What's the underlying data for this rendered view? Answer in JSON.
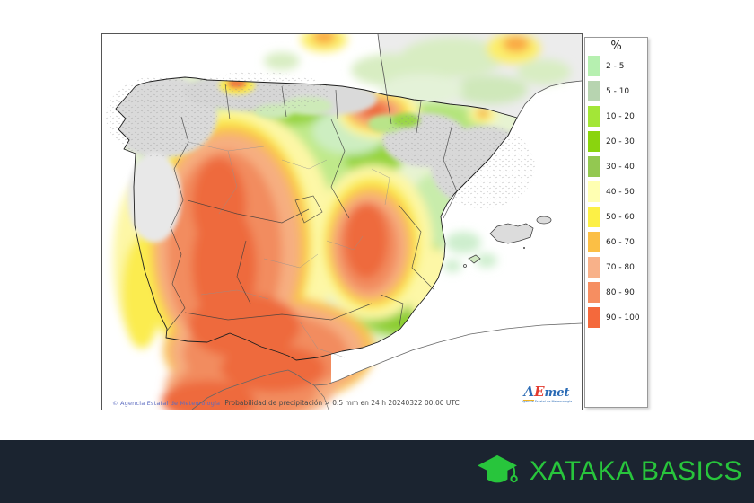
{
  "map": {
    "attribution": "© Agencia Estatal de Meteorología",
    "caption": "Probabilidad de precipitación > 0.5 mm en 24 h 20240322 00:00 UTC",
    "aemet_logo": {
      "part_a": "A",
      "part_e": "E",
      "part_met": "met",
      "subtitle": "Agencia Estatal de Meteorología"
    }
  },
  "legend": {
    "title": "%",
    "items": [
      {
        "label": "2 - 5",
        "color": "#b6f0b0"
      },
      {
        "label": "5 - 10",
        "color": "#b7d4b0"
      },
      {
        "label": "10 - 20",
        "color": "#a3e637"
      },
      {
        "label": "20 - 30",
        "color": "#8ad40e"
      },
      {
        "label": "30 - 40",
        "color": "#93c851"
      },
      {
        "label": "40 - 50",
        "color": "#ffffb2"
      },
      {
        "label": "50 - 60",
        "color": "#fcf046"
      },
      {
        "label": "60 - 70",
        "color": "#fbbf45"
      },
      {
        "label": "70 - 80",
        "color": "#f8b189"
      },
      {
        "label": "80 - 90",
        "color": "#f68e61"
      },
      {
        "label": "90 - 100",
        "color": "#f4693c"
      }
    ]
  },
  "footer": {
    "brand": "XATAKA BASICS",
    "brand_color": "#28c53c",
    "bar_color": "#1b2430",
    "icon": "graduation-cap-icon"
  }
}
